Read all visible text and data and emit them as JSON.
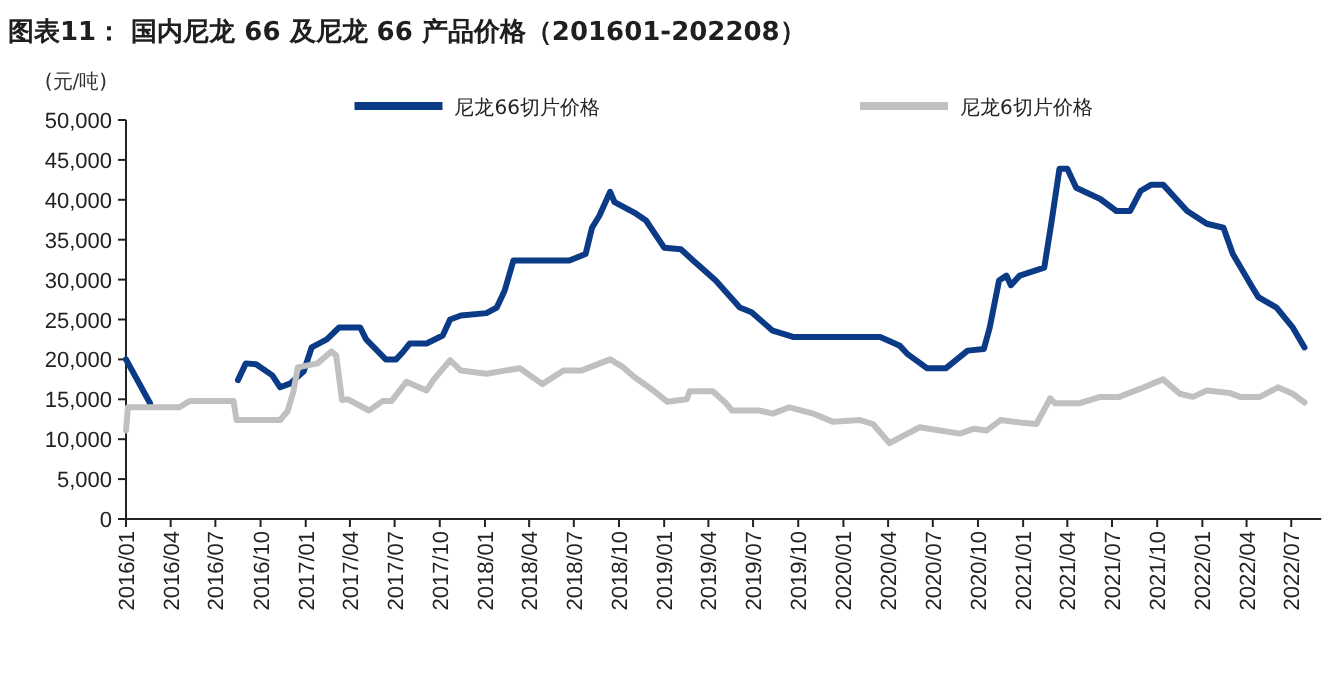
{
  "chart_data": {
    "type": "line",
    "title": "图表11：  国内尼龙 66 及尼龙 66 产品价格（201601-202208）",
    "ylabel": "(元/吨)",
    "legend": "top",
    "grid": false,
    "marker": "none",
    "line_style": "solid",
    "xlim": [
      "2016-01-01",
      "2022-08-31"
    ],
    "xticks": [
      {
        "value": "2016-01",
        "label": "2016/01"
      },
      {
        "value": "2016-04",
        "label": "2016/04"
      },
      {
        "value": "2016-07",
        "label": "2016/07"
      },
      {
        "value": "2016-10",
        "label": "2016/10"
      },
      {
        "value": "2017-01",
        "label": "2017/01"
      },
      {
        "value": "2017-04",
        "label": "2017/04"
      },
      {
        "value": "2017-07",
        "label": "2017/07"
      },
      {
        "value": "2017-10",
        "label": "2017/10"
      },
      {
        "value": "2018-01",
        "label": "2018/01"
      },
      {
        "value": "2018-04",
        "label": "2018/04"
      },
      {
        "value": "2018-07",
        "label": "2018/07"
      },
      {
        "value": "2018-10",
        "label": "2018/10"
      },
      {
        "value": "2019-01",
        "label": "2019/01"
      },
      {
        "value": "2019-04",
        "label": "2019/04"
      },
      {
        "value": "2019-07",
        "label": "2019/07"
      },
      {
        "value": "2019-10",
        "label": "2019/10"
      },
      {
        "value": "2020-01",
        "label": "2020/01"
      },
      {
        "value": "2020-04",
        "label": "2020/04"
      },
      {
        "value": "2020-07",
        "label": "2020/07"
      },
      {
        "value": "2020-10",
        "label": "2020/10"
      },
      {
        "value": "2021-01",
        "label": "2021/01"
      },
      {
        "value": "2021-04",
        "label": "2021/04"
      },
      {
        "value": "2021-07",
        "label": "2021/07"
      },
      {
        "value": "2021-10",
        "label": "2021/10"
      },
      {
        "value": "2022-01",
        "label": "2022/01"
      },
      {
        "value": "2022-04",
        "label": "2022/04"
      },
      {
        "value": "2022-07",
        "label": "2022/07"
      }
    ],
    "ylim": [
      0,
      50000
    ],
    "yticks": [
      0,
      {
        "value": 5000,
        "label": "5,000"
      },
      {
        "value": 10000,
        "label": "10,000"
      },
      {
        "value": 15000,
        "label": "15,000"
      },
      {
        "value": 20000,
        "label": "20,000"
      },
      {
        "value": 25000,
        "label": "25,000"
      },
      {
        "value": 30000,
        "label": "30,000"
      },
      {
        "value": 35000,
        "label": "35,000"
      },
      {
        "value": 40000,
        "label": "40,000"
      },
      {
        "value": 45000,
        "label": "45,000"
      },
      {
        "value": 50000,
        "label": "50,000"
      }
    ],
    "series": [
      {
        "name": "尼龙66切片价格",
        "color": "#0b3a86",
        "x": [
          "2016-01-01",
          "2016-02-19",
          "2016-05-01",
          "2016-08-16",
          "2016-09-01",
          "2016-09-22",
          "2016-10-25",
          "2016-11-10",
          "2016-12-01",
          "2016-12-28",
          "2017-01-13",
          "2017-02-13",
          "2017-03-10",
          "2017-04-22",
          "2017-05-04",
          "2017-06-13",
          "2017-07-04",
          "2017-07-19",
          "2017-08-01",
          "2017-09-04",
          "2017-10-07",
          "2017-10-22",
          "2017-11-13",
          "2018-01-04",
          "2018-01-25",
          "2018-02-10",
          "2018-02-28",
          "2018-06-22",
          "2018-07-25",
          "2018-08-07",
          "2018-08-22",
          "2018-09-13",
          "2018-09-22",
          "2018-11-01",
          "2018-11-25",
          "2019-01-01",
          "2019-02-04",
          "2019-03-01",
          "2019-04-16",
          "2019-06-04",
          "2019-06-28",
          "2019-08-10",
          "2019-09-22",
          "2020-03-16",
          "2020-04-25",
          "2020-05-10",
          "2020-06-19",
          "2020-07-28",
          "2020-09-10",
          "2020-10-13",
          "2020-10-25",
          "2020-11-13",
          "2020-11-28",
          "2020-12-07",
          "2020-12-25",
          "2021-02-13",
          "2021-02-28",
          "2021-03-16",
          "2021-04-01",
          "2021-04-19",
          "2021-06-07",
          "2021-07-10",
          "2021-08-07",
          "2021-08-28",
          "2021-09-19",
          "2021-10-13",
          "2021-12-01",
          "2022-01-10",
          "2022-02-13",
          "2022-03-04",
          "2022-04-13",
          "2022-04-25",
          "2022-06-01",
          "2022-07-04",
          "2022-07-28"
        ],
        "values": [
          20000,
          14500,
          null,
          17400,
          19500,
          19400,
          18000,
          16500,
          17000,
          18500,
          21500,
          22500,
          24000,
          24000,
          22500,
          20000,
          20000,
          21000,
          22000,
          22000,
          23000,
          25000,
          25500,
          25800,
          26500,
          28600,
          32400,
          32400,
          33200,
          36500,
          38000,
          41000,
          39700,
          38400,
          37400,
          34000,
          33800,
          32400,
          29900,
          26500,
          25900,
          23600,
          22800,
          22800,
          21700,
          20700,
          18900,
          18900,
          21100,
          21300,
          24000,
          29900,
          30500,
          29300,
          30500,
          31500,
          37300,
          43900,
          43900,
          41500,
          40100,
          38600,
          38600,
          41100,
          41900,
          41900,
          38600,
          37000,
          36500,
          33200,
          29000,
          27800,
          26500,
          24000,
          21500
        ]
      },
      {
        "name": "尼龙6切片价格",
        "color": "#c0c0c0",
        "x": [
          "2016-01-01",
          "2016-01-05",
          "2016-04-19",
          "2016-05-10",
          "2016-08-07",
          "2016-08-13",
          "2016-11-10",
          "2016-11-25",
          "2016-12-07",
          "2016-12-16",
          "2017-01-25",
          "2017-02-22",
          "2017-03-04",
          "2017-03-16",
          "2017-03-28",
          "2017-05-10",
          "2017-06-07",
          "2017-06-25",
          "2017-07-25",
          "2017-09-04",
          "2017-09-19",
          "2017-10-22",
          "2017-11-13",
          "2018-01-04",
          "2018-03-13",
          "2018-04-28",
          "2018-06-10",
          "2018-07-16",
          "2018-09-13",
          "2018-10-10",
          "2018-11-01",
          "2018-12-10",
          "2019-01-07",
          "2019-02-16",
          "2019-02-22",
          "2019-04-10",
          "2019-05-07",
          "2019-05-19",
          "2019-07-13",
          "2019-08-10",
          "2019-09-13",
          "2019-11-01",
          "2019-12-10",
          "2020-02-04",
          "2020-03-01",
          "2020-04-04",
          "2020-04-25",
          "2020-06-04",
          "2020-07-16",
          "2020-08-25",
          "2020-09-22",
          "2020-10-19",
          "2020-11-16",
          "2020-12-25",
          "2021-01-28",
          "2021-02-25",
          "2021-03-07",
          "2021-04-25",
          "2021-06-07",
          "2021-07-16",
          "2021-09-04",
          "2021-09-19",
          "2021-10-13",
          "2021-11-16",
          "2021-12-13",
          "2022-01-10",
          "2022-02-25",
          "2022-03-19",
          "2022-04-28",
          "2022-06-04",
          "2022-07-04",
          "2022-07-28"
        ],
        "values": [
          11100,
          14000,
          14000,
          14800,
          14800,
          12400,
          12400,
          13500,
          16000,
          19000,
          19500,
          21000,
          20500,
          14900,
          15000,
          13600,
          14800,
          14800,
          17200,
          16100,
          17500,
          19900,
          18600,
          18200,
          18900,
          16900,
          18600,
          18600,
          20000,
          19000,
          17800,
          16100,
          14700,
          15000,
          16000,
          16000,
          14500,
          13600,
          13600,
          13200,
          14000,
          13200,
          12200,
          12400,
          11900,
          9500,
          10200,
          11500,
          11100,
          10700,
          11300,
          11100,
          12400,
          12100,
          11900,
          15100,
          14500,
          14500,
          15300,
          15300,
          16500,
          16900,
          17500,
          15700,
          15300,
          16100,
          15800,
          15300,
          15300,
          16500,
          15700,
          14600
        ]
      }
    ]
  }
}
